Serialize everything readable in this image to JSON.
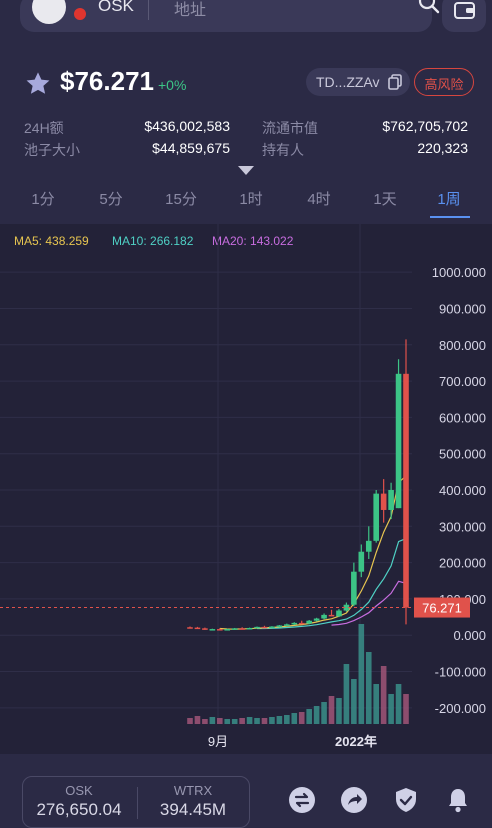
{
  "header": {
    "token_symbol": "OSK",
    "address_placeholder": "地址",
    "icons": [
      "token-logo-icon",
      "tron-badge-icon",
      "search-icon",
      "wallet-icon"
    ]
  },
  "price": {
    "value": "$76.271",
    "change": "+0%",
    "contract_short": "TD...ZZAv",
    "risk_label": "高风险",
    "colors": {
      "up": "#3cc486",
      "risk": "#e15149"
    }
  },
  "stats": {
    "vol_24h_label": "24H额",
    "vol_24h_value": "$436,002,583",
    "mcap_label": "流通市值",
    "mcap_value": "$762,705,702",
    "pool_label": "池子大小",
    "pool_value": "$44,859,675",
    "holders_label": "持有人",
    "holders_value": "220,323"
  },
  "tabs": [
    "1分",
    "5分",
    "15分",
    "1时",
    "4时",
    "1天",
    "1周"
  ],
  "active_tab": "1周",
  "ma": {
    "ma5": "MA5: 438.259",
    "ma10": "MA10: 266.182",
    "ma20": "MA20: 143.022",
    "colors": {
      "ma5": "#e7c550",
      "ma10": "#4fd1c5",
      "ma20": "#c86de0"
    }
  },
  "chart_data": {
    "type": "candlestick",
    "y_ticks": [
      "1000.000",
      "900.000",
      "800.000",
      "700.000",
      "600.000",
      "500.000",
      "400.000",
      "300.000",
      "200.000",
      "100.000",
      "0.000",
      "-100.000",
      "-200.000"
    ],
    "ylim": [
      -250,
      1050
    ],
    "x_ticks": [
      "9月",
      "2022年"
    ],
    "last_price_label": "76.271",
    "last_price": 76.271,
    "colors": {
      "up": "#3cc486",
      "down": "#e0524b"
    },
    "candles": [
      {
        "o": 22,
        "h": 24,
        "l": 20,
        "c": 21
      },
      {
        "o": 21,
        "h": 23,
        "l": 18,
        "c": 19
      },
      {
        "o": 19,
        "h": 21,
        "l": 15,
        "c": 16
      },
      {
        "o": 16,
        "h": 18,
        "l": 14,
        "c": 17
      },
      {
        "o": 17,
        "h": 19,
        "l": 15,
        "c": 16
      },
      {
        "o": 16,
        "h": 18,
        "l": 14,
        "c": 17
      },
      {
        "o": 17,
        "h": 20,
        "l": 16,
        "c": 19
      },
      {
        "o": 19,
        "h": 22,
        "l": 17,
        "c": 18
      },
      {
        "o": 18,
        "h": 21,
        "l": 17,
        "c": 20
      },
      {
        "o": 20,
        "h": 24,
        "l": 19,
        "c": 23
      },
      {
        "o": 23,
        "h": 26,
        "l": 20,
        "c": 21
      },
      {
        "o": 21,
        "h": 25,
        "l": 20,
        "c": 24
      },
      {
        "o": 24,
        "h": 28,
        "l": 22,
        "c": 27
      },
      {
        "o": 27,
        "h": 32,
        "l": 25,
        "c": 30
      },
      {
        "o": 30,
        "h": 36,
        "l": 28,
        "c": 34
      },
      {
        "o": 34,
        "h": 40,
        "l": 31,
        "c": 32
      },
      {
        "o": 32,
        "h": 42,
        "l": 30,
        "c": 40
      },
      {
        "o": 40,
        "h": 48,
        "l": 38,
        "c": 46
      },
      {
        "o": 46,
        "h": 60,
        "l": 44,
        "c": 56
      },
      {
        "o": 56,
        "h": 70,
        "l": 52,
        "c": 52
      },
      {
        "o": 52,
        "h": 72,
        "l": 50,
        "c": 68
      },
      {
        "o": 68,
        "h": 90,
        "l": 65,
        "c": 84
      },
      {
        "o": 84,
        "h": 200,
        "l": 80,
        "c": 175
      },
      {
        "o": 175,
        "h": 250,
        "l": 160,
        "c": 230
      },
      {
        "o": 230,
        "h": 300,
        "l": 210,
        "c": 260
      },
      {
        "o": 260,
        "h": 400,
        "l": 255,
        "c": 390
      },
      {
        "o": 390,
        "h": 430,
        "l": 310,
        "c": 345
      },
      {
        "o": 345,
        "h": 420,
        "l": 320,
        "c": 400
      },
      {
        "o": 350,
        "h": 760,
        "l": 350,
        "c": 720
      },
      {
        "o": 720,
        "h": 815,
        "l": 30,
        "c": 76.271
      }
    ],
    "volume": [
      6,
      8,
      5,
      7,
      6,
      5,
      5,
      6,
      7,
      6,
      6,
      7,
      8,
      9,
      11,
      12,
      15,
      18,
      22,
      28,
      26,
      60,
      45,
      100,
      72,
      40,
      58,
      30,
      40,
      30
    ],
    "ma5": [
      null,
      null,
      null,
      null,
      18.6,
      17.2,
      17.0,
      17.4,
      18.0,
      19.4,
      20.2,
      21.2,
      23.0,
      25.0,
      27.2,
      29.4,
      32.4,
      36.4,
      41.6,
      45.2,
      52.4,
      61.2,
      87.0,
      121.8,
      163.8,
      227.8,
      284.0,
      327.0,
      421.0,
      438.259
    ],
    "ma10": [
      null,
      null,
      null,
      null,
      null,
      null,
      null,
      null,
      null,
      18.6,
      18.6,
      19.0,
      20.0,
      21.3,
      22.7,
      24.2,
      26.3,
      29.1,
      32.8,
      36.7,
      39.9,
      44.4,
      54.8,
      71.0,
      91.3,
      126.4,
      155.5,
      190.9,
      257.8,
      266.182
    ],
    "ma20": [
      null,
      null,
      null,
      null,
      null,
      null,
      null,
      null,
      null,
      null,
      null,
      null,
      null,
      null,
      null,
      null,
      null,
      null,
      null,
      28.0,
      29.5,
      32.8,
      40.2,
      50.2,
      62.1,
      80.6,
      96.8,
      115.6,
      148.5,
      143.022
    ]
  },
  "bottom": {
    "pair_base": "OSK",
    "pair_base_amount": "276,650.04",
    "pair_quote": "WTRX",
    "pair_quote_amount": "394.45M",
    "actions": [
      "swap-icon",
      "share-icon",
      "shield-check-icon",
      "bell-icon"
    ]
  }
}
